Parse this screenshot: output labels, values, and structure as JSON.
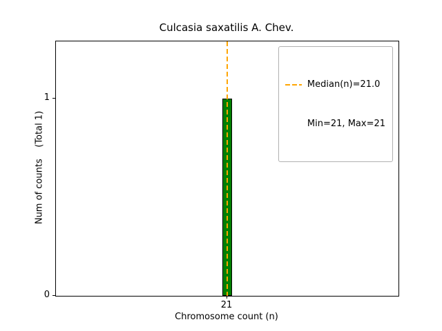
{
  "chart_data": {
    "type": "bar",
    "title": "Culcasia saxatilis A. Chev.",
    "xlabel": "Chromosome count (n)",
    "ylabel": "Num of counts    (Total 1)",
    "x": [
      21
    ],
    "values": [
      1
    ],
    "total_counts": 1,
    "median": 21.0,
    "min": 21,
    "max": 21,
    "xlim": [
      20.3,
      21.7
    ],
    "ylim": [
      0,
      1.29
    ],
    "xticks": [
      21
    ],
    "yticks": [
      0,
      1
    ],
    "grid": false,
    "legend_position": "upper right",
    "legend": [
      "Median(n)=21.0",
      "Min=21, Max=21"
    ],
    "colors": {
      "bar_fill": "#008000",
      "bar_edge": "#000000",
      "median_line": "#FFA500",
      "axes": "#000000"
    }
  }
}
